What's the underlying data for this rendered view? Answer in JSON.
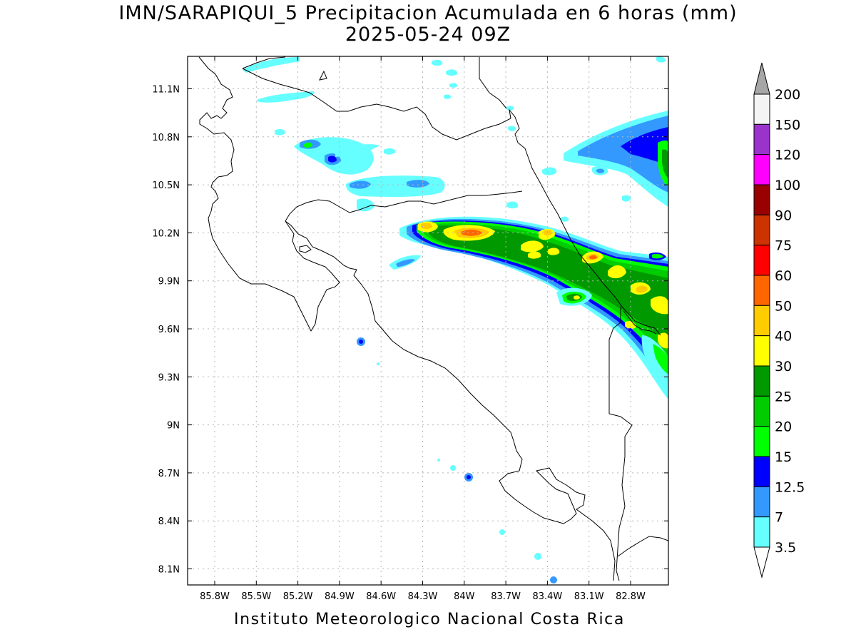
{
  "header": {
    "title_line1": "IMN/SARAPIQUI_5 Precipitacion Acumulada en 6 horas (mm)",
    "title_line2": "2025-05-24 09Z"
  },
  "footer": {
    "credit": "Instituto Meteorologico Nacional Costa Rica"
  },
  "map": {
    "lon_ticks": [
      "85.8W",
      "85.5W",
      "85.2W",
      "84.9W",
      "84.6W",
      "84.3W",
      "84W",
      "83.7W",
      "83.4W",
      "83.1W",
      "82.8W"
    ],
    "lat_ticks": [
      "11.1N",
      "10.8N",
      "10.5N",
      "10.2N",
      "9.9N",
      "9.6N",
      "9.3N",
      "9N",
      "8.7N",
      "8.4N",
      "8.1N"
    ]
  },
  "colorbar": {
    "labels": [
      "200",
      "150",
      "120",
      "100",
      "90",
      "75",
      "60",
      "50",
      "40",
      "30",
      "25",
      "20",
      "15",
      "12.5",
      "7",
      "3.5"
    ],
    "colors": [
      "#f4f4f4",
      "#9933cc",
      "#ff00ff",
      "#990000",
      "#cc3300",
      "#ff0000",
      "#ff6600",
      "#ffcc00",
      "#ffff00",
      "#009900",
      "#00cc00",
      "#00ff00",
      "#0000ff",
      "#3399ff",
      "#66ffff"
    ],
    "over_color": "#a6a6a6"
  },
  "precip_colors": {
    "c3": "#66ffff",
    "c7": "#3399ff",
    "c12": "#0000ff",
    "c15": "#00ff00",
    "c20": "#00cc00",
    "c25": "#009900",
    "c30": "#ffff00",
    "c40": "#ffcc00",
    "c50": "#ff6600",
    "c60": "#ff0000"
  }
}
